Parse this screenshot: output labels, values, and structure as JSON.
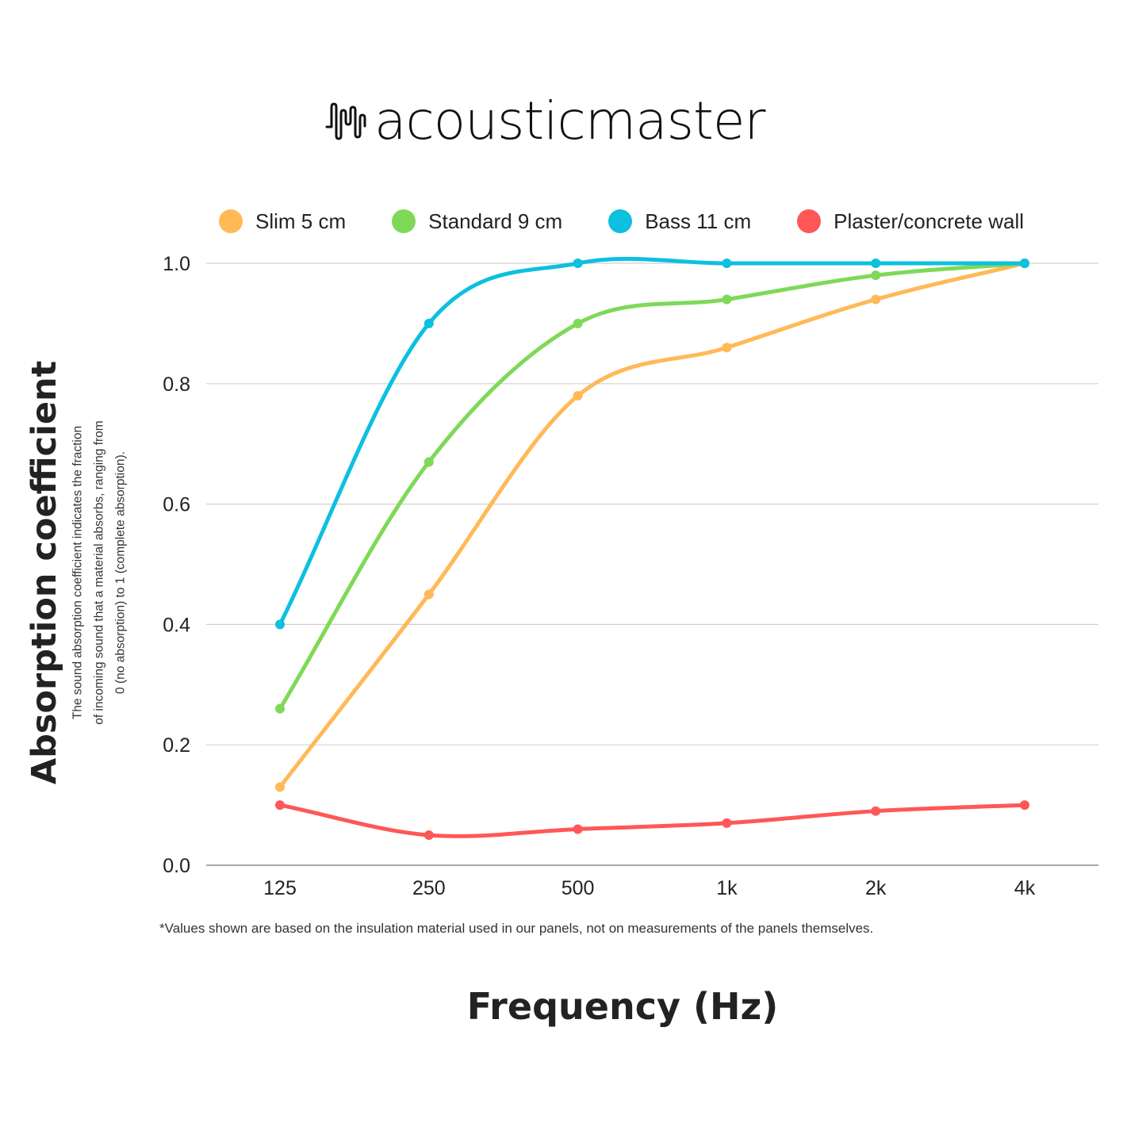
{
  "brand": {
    "logo_text": "acousticmaster",
    "logo_icon": "sound-wave-icon"
  },
  "colors": {
    "slim": "#FFB957",
    "standard": "#7ED957",
    "bass": "#0CC0DF",
    "plaster": "#FF5757",
    "grid": "#D0D0D0",
    "axis": "#888888"
  },
  "chart_data": {
    "type": "line",
    "title": "",
    "xlabel": "Frequency (Hz)",
    "ylabel": "Absorption coefficient",
    "ylabel_description": [
      "The sound absorption coefficient indicates the fraction",
      "of incoming sound that a material absorbs, ranging from",
      "0 (no absorption) to 1 (complete absorption)."
    ],
    "categories": [
      "125",
      "250",
      "500",
      "1k",
      "2k",
      "4k"
    ],
    "yticks": [
      "0.0",
      "0.2",
      "0.4",
      "0.6",
      "0.8",
      "1.0"
    ],
    "ylim": [
      0,
      1.0
    ],
    "grid": true,
    "legend_position": "top",
    "smooth": true,
    "series": [
      {
        "name": "Slim 5 cm",
        "color_key": "slim",
        "values": [
          0.13,
          0.45,
          0.78,
          0.86,
          0.94,
          1.0
        ]
      },
      {
        "name": "Standard 9 cm",
        "color_key": "standard",
        "values": [
          0.26,
          0.67,
          0.9,
          0.94,
          0.98,
          1.0
        ]
      },
      {
        "name": "Bass 11 cm",
        "color_key": "bass",
        "values": [
          0.4,
          0.9,
          1.0,
          1.0,
          1.0,
          1.0
        ]
      },
      {
        "name": "Plaster/concrete wall",
        "color_key": "plaster",
        "values": [
          0.1,
          0.05,
          0.06,
          0.07,
          0.09,
          0.1
        ]
      }
    ],
    "footnote": "*Values shown are based on the insulation material used in our panels, not on measurements of the panels themselves."
  }
}
